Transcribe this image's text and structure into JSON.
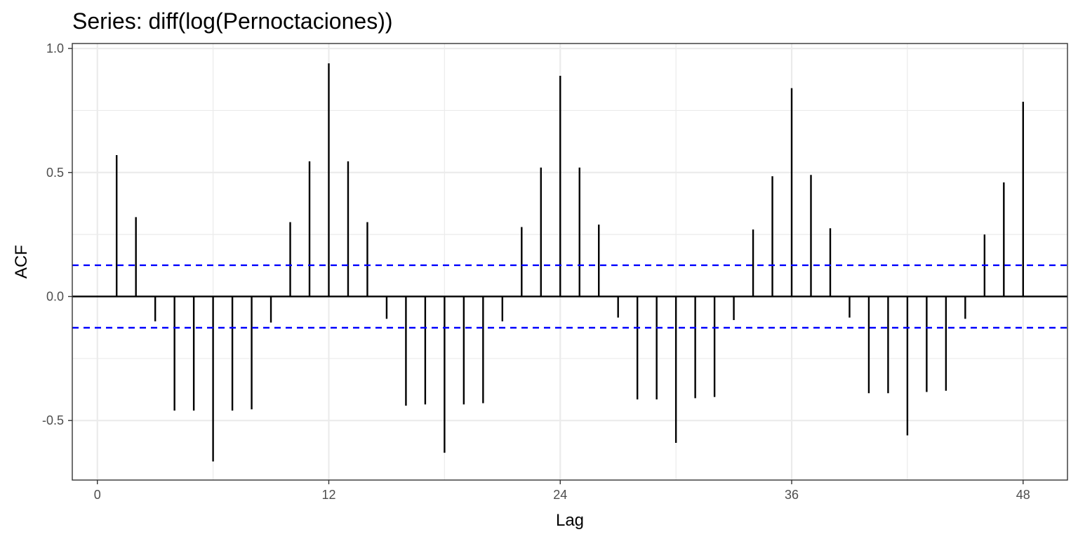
{
  "chart_data": {
    "type": "bar",
    "title": "Series: diff(log(Pernoctaciones))",
    "xlabel": "Lag",
    "ylabel": "ACF",
    "xlim": [
      -1.3,
      50.3
    ],
    "ylim": [
      -0.74,
      1.02
    ],
    "x_ticks": [
      0,
      12,
      24,
      36,
      48
    ],
    "y_ticks": [
      -0.5,
      0.0,
      0.5,
      1.0
    ],
    "y_tick_labels": [
      "-0.5",
      "0.0",
      "0.5",
      "1.0"
    ],
    "lags": [
      1,
      2,
      3,
      4,
      5,
      6,
      7,
      8,
      9,
      10,
      11,
      12,
      13,
      14,
      15,
      16,
      17,
      18,
      19,
      20,
      21,
      22,
      23,
      24,
      25,
      26,
      27,
      28,
      29,
      30,
      31,
      32,
      33,
      34,
      35,
      36,
      37,
      38,
      39,
      40,
      41,
      42,
      43,
      44,
      45,
      46,
      47,
      48
    ],
    "acf": [
      0.57,
      0.32,
      -0.1,
      -0.46,
      -0.46,
      -0.665,
      -0.46,
      -0.455,
      -0.105,
      0.3,
      0.545,
      0.94,
      0.545,
      0.3,
      -0.09,
      -0.44,
      -0.435,
      -0.63,
      -0.435,
      -0.43,
      -0.1,
      0.28,
      0.52,
      0.89,
      0.52,
      0.29,
      -0.085,
      -0.415,
      -0.415,
      -0.59,
      -0.41,
      -0.405,
      -0.095,
      0.27,
      0.485,
      0.84,
      0.49,
      0.275,
      -0.085,
      -0.39,
      -0.39,
      -0.56,
      -0.385,
      -0.38,
      -0.09,
      0.25,
      0.46,
      0.785
    ],
    "confidence_bound": 0.126,
    "colors": {
      "bar": "#000000",
      "confidence": "#0000ff",
      "grid": "#ebebeb",
      "panel_border": "#333333"
    },
    "grid": true
  }
}
